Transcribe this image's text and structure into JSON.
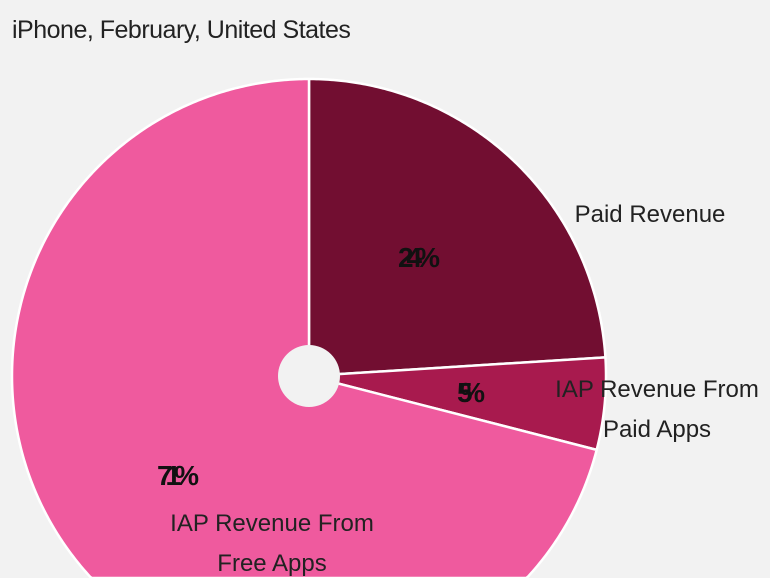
{
  "chart_data": {
    "type": "pie",
    "title": "iPhone, February, United States",
    "categories": [
      "Paid Revenue",
      "IAP Revenue From Paid Apps",
      "IAP Revenue From Free Apps"
    ],
    "label_lines": [
      [
        "Paid Revenue"
      ],
      [
        "IAP Revenue From",
        "Paid Apps"
      ],
      [
        "IAP Revenue From",
        "Free Apps"
      ]
    ],
    "values": [
      24,
      5,
      71
    ],
    "value_labels": [
      "24%",
      "5%",
      "71%"
    ],
    "colors": [
      "#720e31",
      "#a81a4e",
      "#ef5a9e"
    ],
    "background": "#f2f2f2"
  }
}
